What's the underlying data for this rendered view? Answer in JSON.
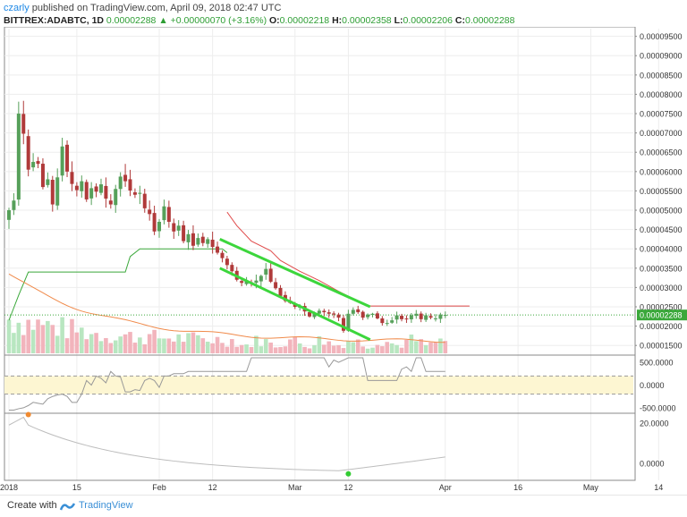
{
  "header": {
    "user": "czarly",
    "published": "published on TradingView.com, April 09, 2018 02:47 UTC",
    "symbol": "BITTREX:ADABTC, 1D",
    "last": "0.00002288",
    "change": "+0.00000070 (+3.16%)",
    "o_label": "O:",
    "o": "0.00002218",
    "h_label": "H:",
    "h": "0.00002358",
    "l_label": "L:",
    "l": "0.00002206",
    "c_label": "C:",
    "c": "0.00002288"
  },
  "footer": {
    "created_with": "Create with",
    "brand": "TradingView"
  },
  "colors": {
    "up": "#56a05a",
    "down": "#b03a3a",
    "channel": "#3cd63c",
    "resistance": "#e04a4a",
    "support": "#3aa83a",
    "ma": "#f08a4a",
    "upvol": "#b8e6c0",
    "downvol": "#f2b4bc",
    "osc": "#999999",
    "cci_band": "#fdf6d2"
  },
  "chart_data": {
    "type": "candlestick",
    "price_axis": {
      "ticks": [
        "0.00009500",
        "0.00009000",
        "0.00008500",
        "0.00008000",
        "0.00007500",
        "0.00007000",
        "0.00006500",
        "0.00006000",
        "0.00005500",
        "0.00005000",
        "0.00004500",
        "0.00004000",
        "0.00003500",
        "0.00003000",
        "0.00002500",
        "0.00002000",
        "0.00001500"
      ],
      "ylim": [
        1.25e-05,
        9.7e-05
      ],
      "last_price_label": "0.00002288"
    },
    "x_axis": {
      "ticks": [
        "2018",
        "15",
        "Feb",
        "12",
        "Mar",
        "12",
        "Apr",
        "16",
        "May",
        "14"
      ],
      "tick_days": [
        0,
        14,
        31,
        42,
        59,
        70,
        90,
        105,
        120,
        134
      ]
    },
    "series_daily": {
      "close": [
        5e-05,
        5.25e-05,
        7.5e-05,
        6.98e-05,
        6.05e-05,
        6.25e-05,
        6.2e-05,
        5.6e-05,
        5.8e-05,
        5.15e-05,
        5.85e-05,
        6.65e-05,
        6e-05,
        5.68e-05,
        5.52e-05,
        5.75e-05,
        5.28e-05,
        5.57e-05,
        5.48e-05,
        5.67e-05,
        5.3e-05,
        5.15e-05,
        5.55e-05,
        5.87e-05,
        5.75e-05,
        5.51e-05,
        5.4e-05,
        5.45e-05,
        5.05e-05,
        4.9e-05,
        4.45e-05,
        4.7e-05,
        5.1e-05,
        4.7e-05,
        4.45e-05,
        4.6e-05,
        4.2e-05,
        4.38e-05,
        4.08e-05,
        4.28e-05,
        4.15e-05,
        4.25e-05,
        4.05e-05,
        3.9e-05,
        3.76e-05,
        3.58e-05,
        3.42e-05,
        3.2e-05,
        3.12e-05,
        3.16e-05,
        3.11e-05,
        3.18e-05,
        3.3e-05,
        3.48e-05,
        3.15e-05,
        2.98e-05,
        2.78e-05,
        2.65e-05,
        2.6e-05,
        2.5e-05,
        2.52e-05,
        2.38e-05,
        2.25e-05,
        2.34e-05,
        2.4e-05,
        2.36e-05,
        2.32e-05,
        2.3e-05,
        2.22e-05,
        1.88e-05,
        2.32e-05,
        2.42e-05,
        2.36e-05,
        2.22e-05,
        2.3e-05,
        2.32e-05,
        2.2e-05,
        2.08e-05,
        2.08e-05,
        2.15e-05,
        2.28e-05,
        2.18e-05,
        2.18e-05,
        2.28e-05,
        2.32e-05,
        2.18e-05,
        2.28e-05,
        2.22e-05,
        2.2e-05,
        2.3e-05,
        2.29e-05
      ]
    },
    "volume": {
      "note": "histogram, green on up days, red on down days"
    },
    "oscillator_axis": {
      "ticks": [
        "500.0000",
        "0.0000",
        "-500.0000"
      ],
      "ylim": [
        -600,
        620
      ]
    },
    "momentum_axis": {
      "ticks": [
        "20.0000",
        "0.0000"
      ],
      "ylim": [
        -8,
        24
      ]
    }
  }
}
